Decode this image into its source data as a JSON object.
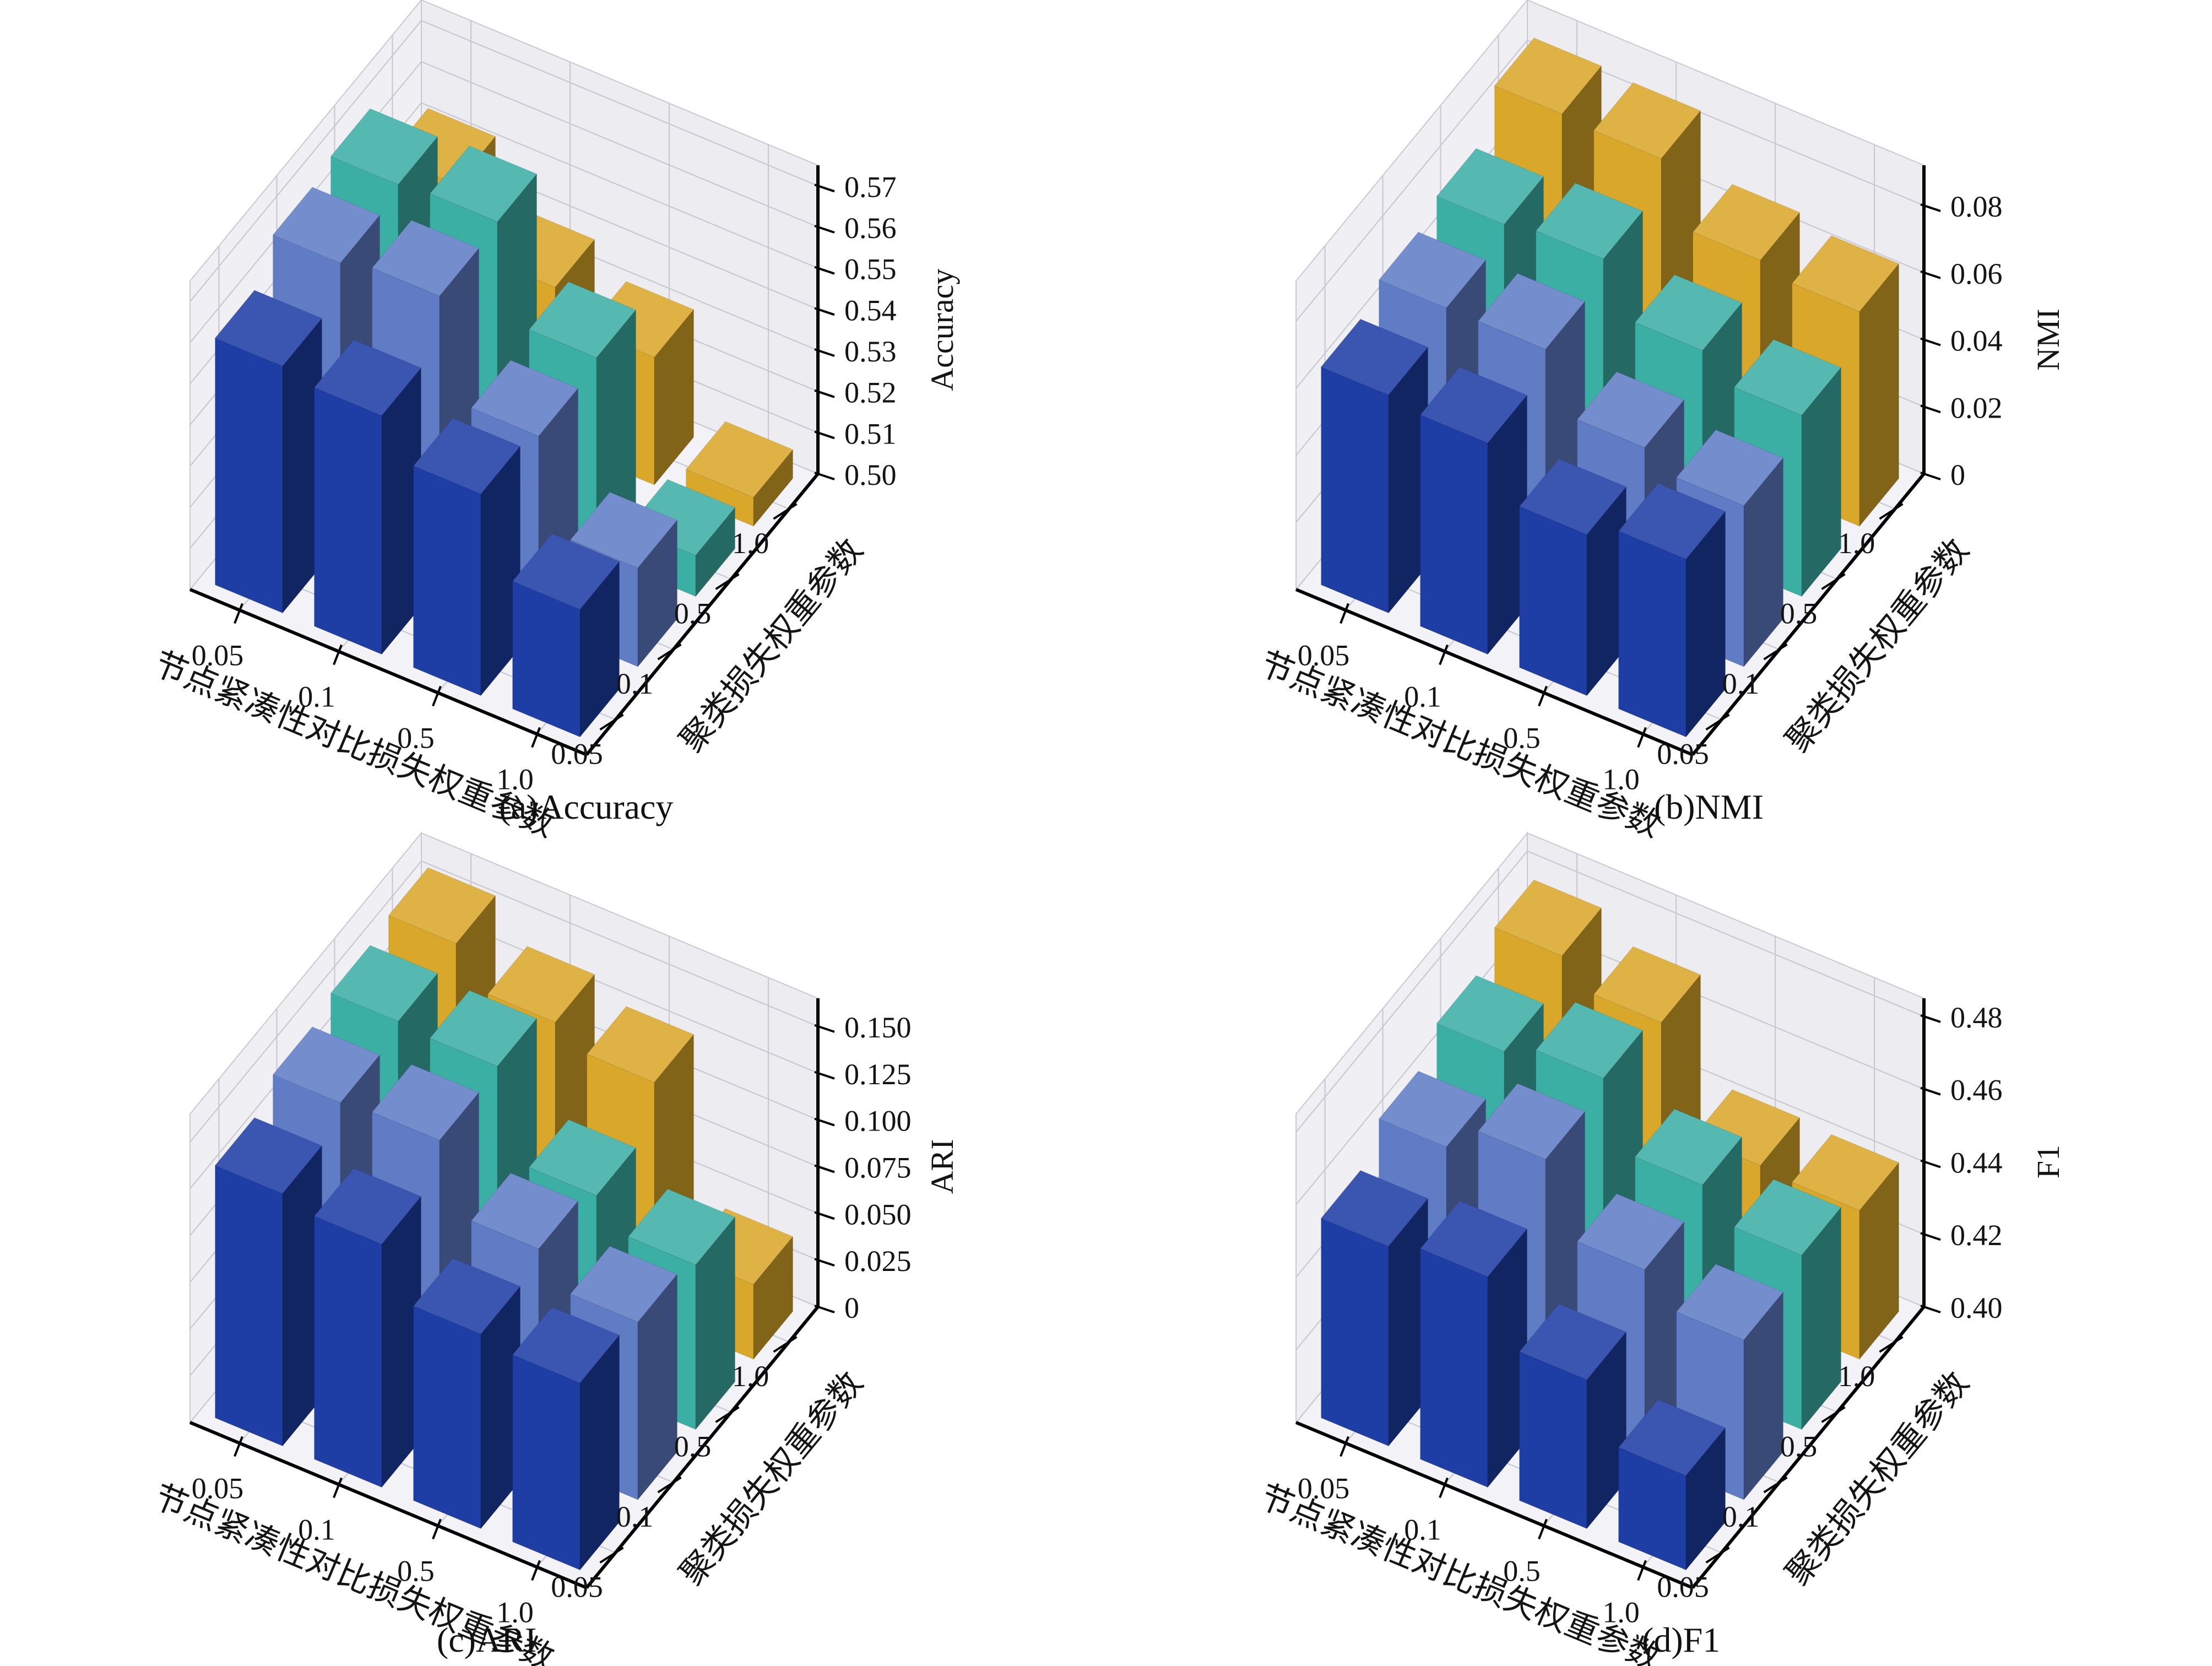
{
  "figure": {
    "background": "#ffffff",
    "x_axis_label": "节点紧凑性对比损失权重参数",
    "y_axis_label": "聚类损失权重参数",
    "x_ticks": [
      "0.05",
      "0.1",
      "0.5",
      "1.0"
    ],
    "y_ticks": [
      "0.05",
      "0.1",
      "0.5",
      "1.0"
    ],
    "series_colors": [
      "#1e3da5",
      "#5f7cc4",
      "#3cafa5",
      "#d9a729"
    ],
    "grid_color": "#c8c9d2",
    "wall_colors": {
      "floor": "#f3f3f7",
      "left": "#efeff4",
      "back": "#ececf1"
    },
    "axis_line_color": "#000000",
    "text_color": "#141414"
  },
  "chart_data": [
    {
      "id": "accuracy",
      "type": "bar",
      "caption": "(a)Accuracy",
      "zlabel": "Accuracy",
      "zmin": 0.5,
      "zmax_box": 0.575,
      "grid": true,
      "legend": "none",
      "x_categories": [
        "0.05",
        "0.1",
        "0.5",
        "1.0"
      ],
      "y_categories": [
        "0.05",
        "0.1",
        "0.5",
        "1.0"
      ],
      "z_ticks": [
        {
          "label": "0.50",
          "value": 0.5
        },
        {
          "label": "0.51",
          "value": 0.51
        },
        {
          "label": "0.52",
          "value": 0.52
        },
        {
          "label": "0.53",
          "value": 0.53
        },
        {
          "label": "0.54",
          "value": 0.54
        },
        {
          "label": "0.55",
          "value": 0.55
        },
        {
          "label": "0.56",
          "value": 0.56
        },
        {
          "label": "0.57",
          "value": 0.57
        }
      ],
      "series": [
        {
          "name": "0.05",
          "values": [
            0.56,
            0.558,
            0.549,
            0.531
          ]
        },
        {
          "name": "0.1",
          "values": [
            0.568,
            0.57,
            0.546,
            0.524
          ]
        },
        {
          "name": "0.5",
          "values": [
            0.57,
            0.571,
            0.548,
            0.51
          ]
        },
        {
          "name": "1.0",
          "values": [
            0.553,
            0.538,
            0.531,
            0.507
          ]
        }
      ]
    },
    {
      "id": "nmi",
      "type": "bar",
      "caption": "(b)NMI",
      "zlabel": "NMI",
      "zmin": 0,
      "zmax_box": 0.092,
      "grid": true,
      "legend": "none",
      "x_categories": [
        "0.05",
        "0.1",
        "0.5",
        "1.0"
      ],
      "y_categories": [
        "0.05",
        "0.1",
        "0.5",
        "1.0"
      ],
      "z_ticks": [
        {
          "label": "0",
          "value": 0
        },
        {
          "label": "0.02",
          "value": 0.02
        },
        {
          "label": "0.04",
          "value": 0.04
        },
        {
          "label": "0.06",
          "value": 0.06
        },
        {
          "label": "0.08",
          "value": 0.08
        }
      ],
      "series": [
        {
          "name": "0.05",
          "values": [
            0.065,
            0.063,
            0.048,
            0.053
          ]
        },
        {
          "name": "0.1",
          "values": [
            0.07,
            0.07,
            0.053,
            0.048
          ]
        },
        {
          "name": "0.5",
          "values": [
            0.074,
            0.076,
            0.061,
            0.054
          ]
        },
        {
          "name": "1.0",
          "values": [
            0.086,
            0.085,
            0.067,
            0.064
          ]
        }
      ]
    },
    {
      "id": "ari",
      "type": "bar",
      "caption": "(c)ARI",
      "zlabel": "ARI",
      "zmin": 0,
      "zmax_box": 0.165,
      "grid": true,
      "legend": "none",
      "x_categories": [
        "0.05",
        "0.1",
        "0.5",
        "1.0"
      ],
      "y_categories": [
        "0.05",
        "0.1",
        "0.5",
        "1.0"
      ],
      "z_ticks": [
        {
          "label": "0",
          "value": 0
        },
        {
          "label": "0.025",
          "value": 0.025
        },
        {
          "label": "0.050",
          "value": 0.05
        },
        {
          "label": "0.075",
          "value": 0.075
        },
        {
          "label": "0.100",
          "value": 0.1
        },
        {
          "label": "0.125",
          "value": 0.125
        },
        {
          "label": "0.150",
          "value": 0.15
        }
      ],
      "series": [
        {
          "name": "0.05",
          "values": [
            0.135,
            0.13,
            0.104,
            0.1
          ]
        },
        {
          "name": "0.1",
          "values": [
            0.146,
            0.148,
            0.112,
            0.095
          ]
        },
        {
          "name": "0.5",
          "values": [
            0.152,
            0.15,
            0.103,
            0.088
          ]
        },
        {
          "name": "1.0",
          "values": [
            0.156,
            0.136,
            0.126,
            0.04
          ]
        }
      ]
    },
    {
      "id": "f1",
      "type": "bar",
      "caption": "(d)F1",
      "zlabel": "F1",
      "zmin": 0.4,
      "zmax_box": 0.485,
      "grid": true,
      "legend": "none",
      "x_categories": [
        "0.05",
        "0.1",
        "0.5",
        "1.0"
      ],
      "y_categories": [
        "0.05",
        "0.1",
        "0.5",
        "1.0"
      ],
      "z_ticks": [
        {
          "label": "0.40",
          "value": 0.4
        },
        {
          "label": "0.42",
          "value": 0.42
        },
        {
          "label": "0.44",
          "value": 0.44
        },
        {
          "label": "0.46",
          "value": 0.46
        },
        {
          "label": "0.48",
          "value": 0.48
        }
      ],
      "series": [
        {
          "name": "0.05",
          "values": [
            0.455,
            0.458,
            0.441,
            0.426
          ]
        },
        {
          "name": "0.1",
          "values": [
            0.463,
            0.471,
            0.452,
            0.444
          ]
        },
        {
          "name": "0.5",
          "values": [
            0.47,
            0.474,
            0.456,
            0.448
          ]
        },
        {
          "name": "1.0",
          "values": [
            0.477,
            0.47,
            0.442,
            0.441
          ]
        }
      ]
    }
  ]
}
